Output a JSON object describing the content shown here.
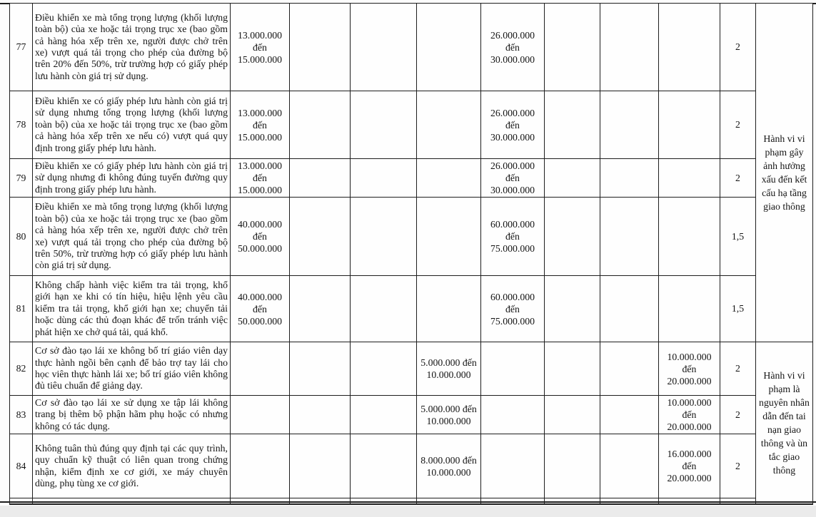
{
  "document": {
    "type": "fine-schedule-table",
    "language": "vi",
    "text_color": "#151515",
    "border_color": "#1e1e1e"
  },
  "table": {
    "rows": [
      {
        "no": "77",
        "description": "Điều khiển xe mà tổng trọng lượng (khối lượng toàn bộ) của xe hoặc tải trọng trục xe (bao gồm cả hàng hóa xếp trên xe, người được chở trên xe) vượt quá tải trọng cho phép của đường bộ trên 20% đến 50%, trừ trường hợp có giấy phép lưu hành còn giá trị sử dụng.",
        "fines": {
          "c3": [
            "13.000.000",
            "đến",
            "15.000.000"
          ],
          "c6": [],
          "c7": [
            "26.000.000",
            "đến",
            "30.000.000"
          ],
          "c10": []
        },
        "points": "2"
      },
      {
        "no": "78",
        "description": "Điều khiển xe có giấy phép lưu hành còn giá trị sử dụng nhưng tổng trọng lượng (khối lượng toàn bộ) của xe hoặc tải trọng trục xe (bao gồm cả hàng hóa xếp trên xe nếu có) vượt quá quy định trong giấy phép lưu hành.",
        "fines": {
          "c3": [
            "13.000.000",
            "đến",
            "15.000.000"
          ],
          "c6": [],
          "c7": [
            "26.000.000",
            "đến",
            "30.000.000"
          ],
          "c10": []
        },
        "points": "2"
      },
      {
        "no": "79",
        "description": "Điều khiển xe có giấy phép lưu hành còn giá trị sử dụng nhưng đi không đúng tuyến đường quy định trong giấy phép lưu hành.",
        "fines": {
          "c3": [
            "13.000.000",
            "đến",
            "15.000.000"
          ],
          "c6": [],
          "c7": [
            "26.000.000",
            "đến",
            "30.000.000"
          ],
          "c10": []
        },
        "points": "2"
      },
      {
        "no": "80",
        "description": "Điều khiển xe mà tổng trọng lượng (khối lượng toàn bộ) của xe hoặc tải trọng trục xe (bao gồm cả hàng hóa xếp trên xe, người được chở trên xe) vượt quá tải trọng cho phép của đường bộ trên 50%, trừ trường hợp có giấy phép lưu hành còn giá trị sử dụng.",
        "fines": {
          "c3": [
            "40.000.000",
            "đến",
            "50.000.000"
          ],
          "c6": [],
          "c7": [
            "60.000.000",
            "đến",
            "75.000.000"
          ],
          "c10": []
        },
        "points": "1,5"
      },
      {
        "no": "81",
        "description": "Không chấp hành việc kiểm tra tải trọng, khổ giới hạn xe khi có tín hiệu, hiệu lệnh yêu cầu kiểm tra tải trọng, khổ giới hạn xe; chuyển tải hoặc dùng các thủ đoạn khác để trốn tránh việc phát hiện xe chở quá tải, quá khổ.",
        "fines": {
          "c3": [
            "40.000.000",
            "đến",
            "50.000.000"
          ],
          "c6": [],
          "c7": [
            "60.000.000",
            "đến",
            "75.000.000"
          ],
          "c10": []
        },
        "points": "1,5"
      },
      {
        "no": "82",
        "description": "Cơ sở đào tạo lái xe không bố trí giáo viên dạy thực hành ngồi bên cạnh để bảo trợ tay lái cho học viên thực hành lái xe; bố trí giáo viên không đủ tiêu chuẩn để giảng dạy.",
        "fines": {
          "c3": [],
          "c6": [
            "5.000.000 đến",
            "10.000.000"
          ],
          "c7": [],
          "c10": [
            "10.000.000",
            "đến",
            "20.000.000"
          ]
        },
        "points": "2"
      },
      {
        "no": "83",
        "description": "Cơ sở đào tạo lái xe sử dụng xe tập lái không trang bị thêm bộ phận hãm phụ hoặc có nhưng không có tác dụng.",
        "fines": {
          "c3": [],
          "c6": [
            "5.000.000 đến",
            "10.000.000"
          ],
          "c7": [],
          "c10": [
            "10.000.000",
            "đến",
            "20.000.000"
          ]
        },
        "points": "2"
      },
      {
        "no": "84",
        "description": "Không tuân thủ đúng quy định tại các quy trình, quy chuẩn kỹ thuật có liên quan trong chứng nhận, kiểm định xe cơ giới, xe máy chuyên dùng, phụ tùng xe cơ giới.",
        "fines": {
          "c3": [],
          "c6": [
            "8.000.000 đến",
            "10.000.000"
          ],
          "c7": [],
          "c10": [
            "16.000.000",
            "đến",
            "20.000.000"
          ]
        },
        "points": "2"
      }
    ],
    "notes": [
      {
        "applies_to_rows": "77–81",
        "text": "Hành vi vi phạm gây ảnh hưởng xấu đến kết cấu hạ tầng giao thông"
      },
      {
        "applies_to_rows": "82–84",
        "text": "Hành vi vi phạm là nguyên nhân dẫn đến tai nạn giao thông và ùn tắc giao thông"
      }
    ]
  }
}
